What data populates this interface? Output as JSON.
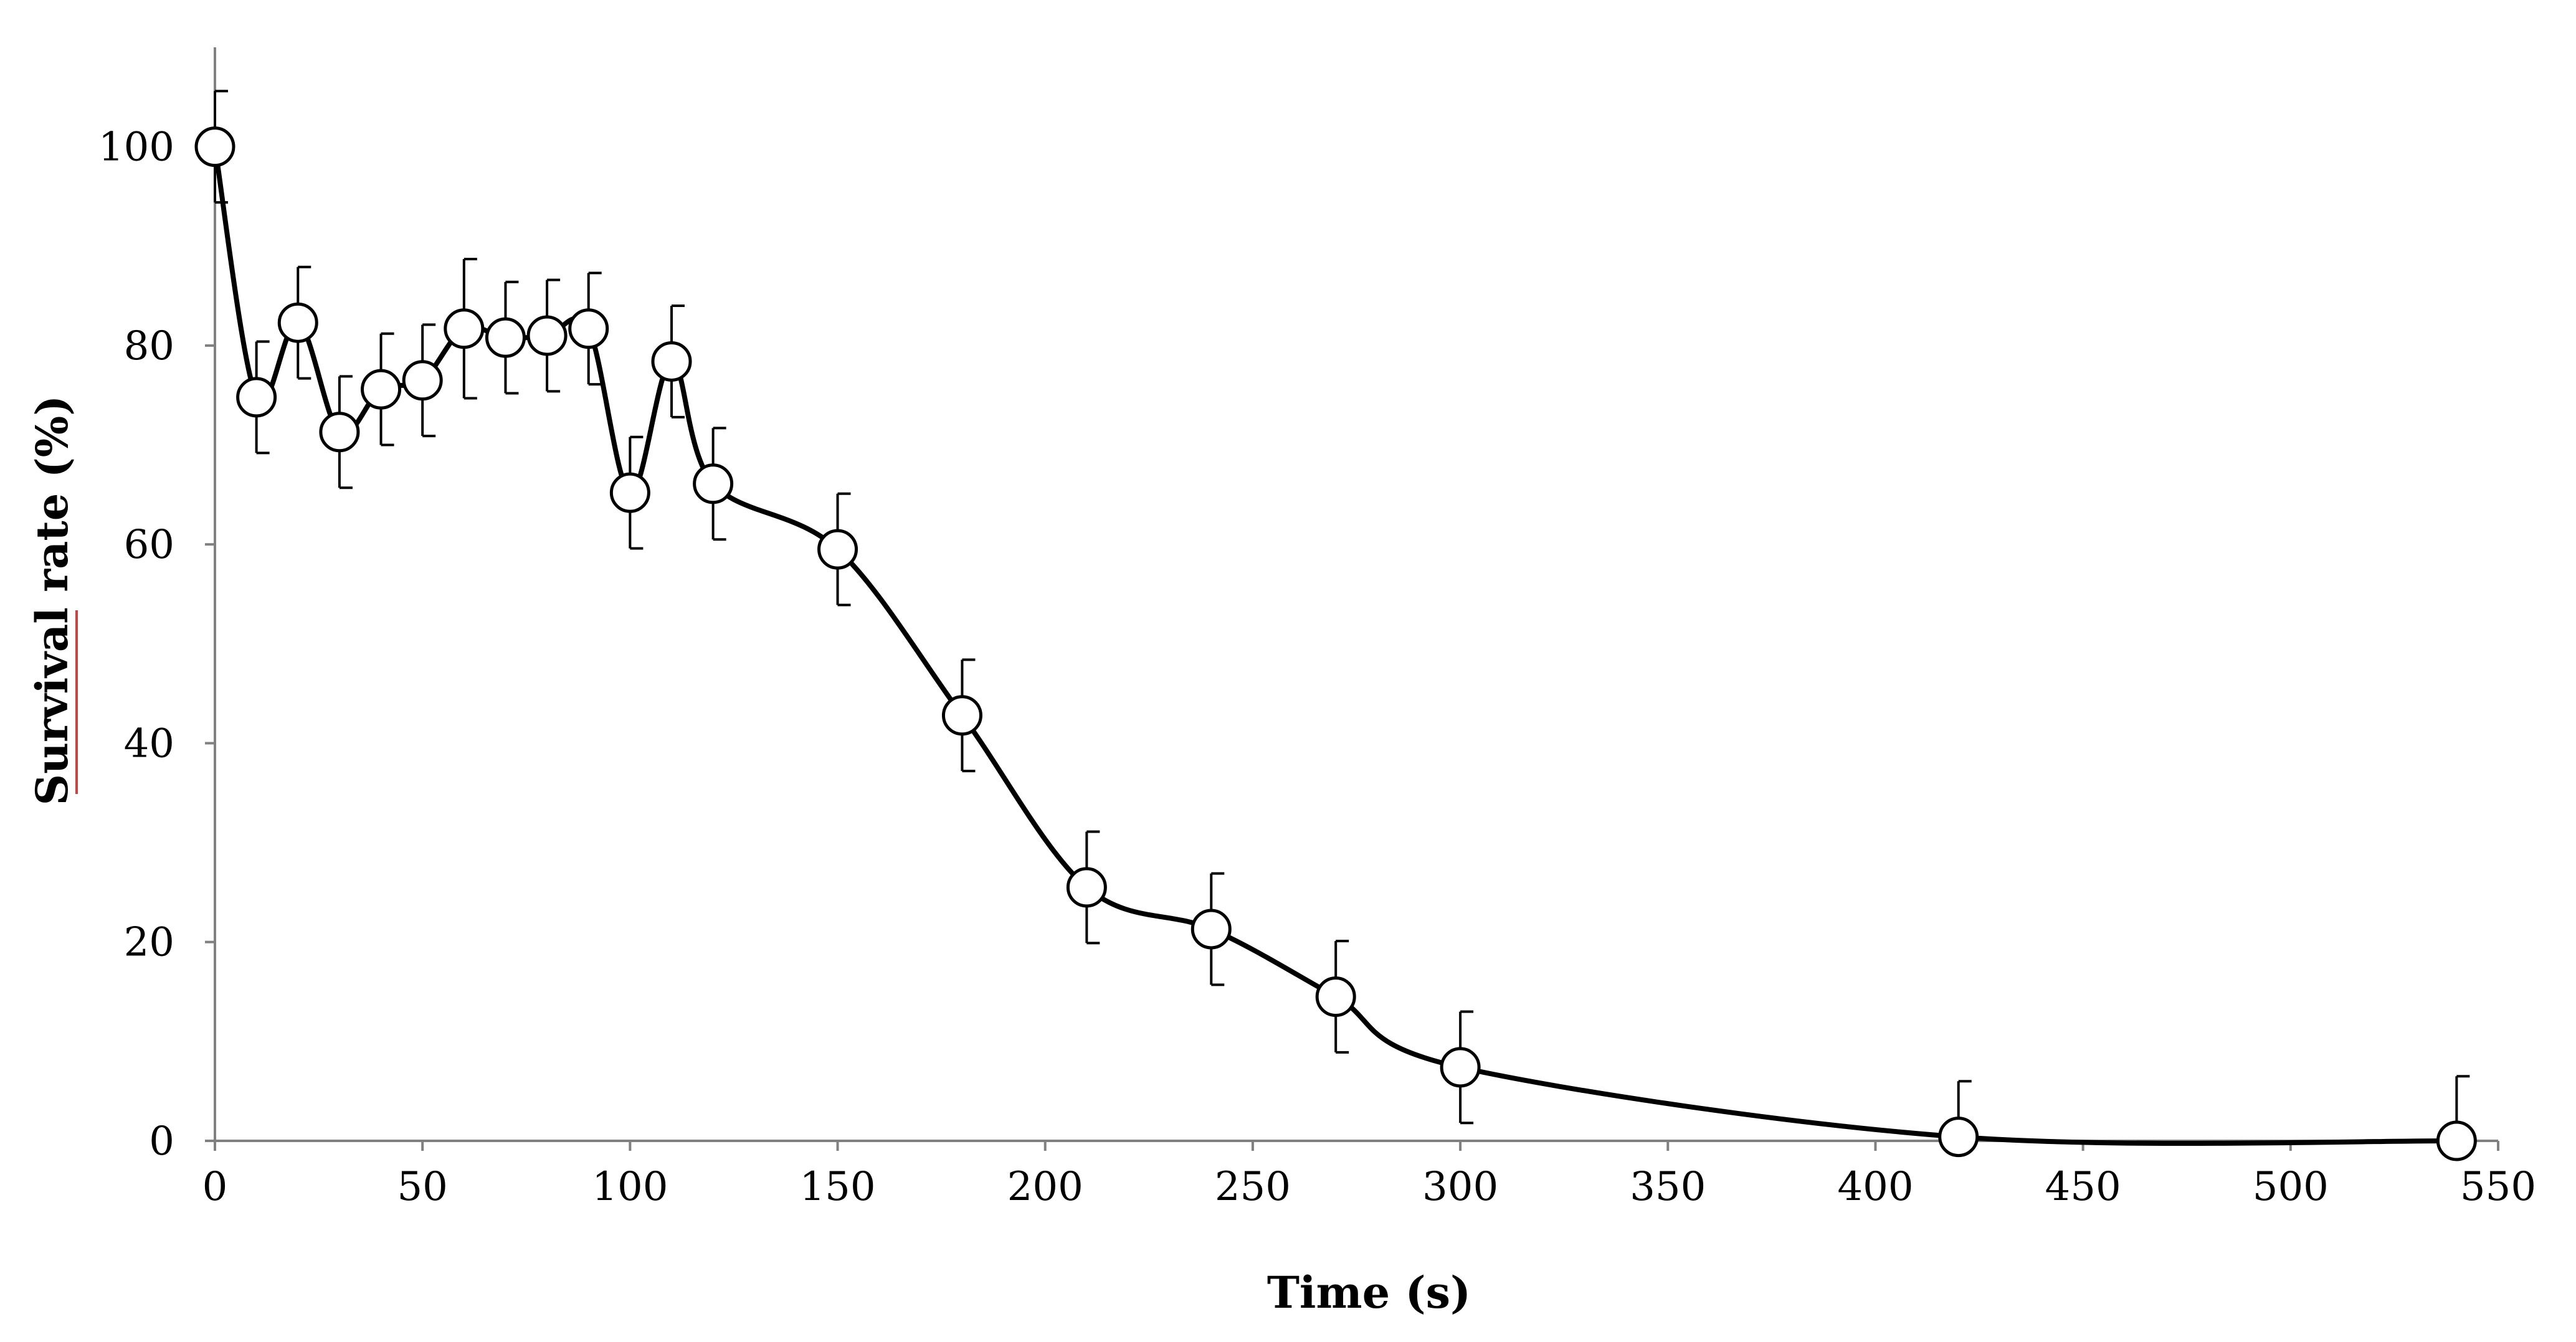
{
  "chart_data": {
    "type": "line",
    "title": "",
    "xlabel": "Time (s)",
    "ylabel": "Survival rate (%)",
    "xlim": [
      0,
      550
    ],
    "ylim": [
      0,
      110
    ],
    "xticks": [
      0,
      50,
      100,
      150,
      200,
      250,
      300,
      350,
      400,
      450,
      500,
      550
    ],
    "yticks": [
      0,
      20,
      40,
      60,
      80,
      100
    ],
    "grid": false,
    "legend": "none",
    "line_style": "smooth",
    "colors": {
      "line": "#000000",
      "marker_fill": "#ffffff",
      "marker_stroke": "#000000",
      "axis": "#808080",
      "ylabel_underline": "#d04040"
    },
    "series": [
      {
        "name": "Survival rate",
        "x": [
          0,
          10,
          20,
          30,
          40,
          50,
          60,
          70,
          80,
          90,
          100,
          110,
          120,
          150,
          180,
          210,
          240,
          270,
          300,
          420,
          540
        ],
        "y": [
          100,
          74.8,
          82.3,
          71.3,
          75.6,
          76.5,
          81.7,
          80.8,
          81.0,
          81.7,
          65.2,
          78.4,
          66.1,
          59.5,
          42.8,
          25.5,
          21.3,
          14.5,
          7.4,
          0.4,
          0.0
        ],
        "error": [
          5.6,
          5.6,
          5.6,
          5.6,
          5.6,
          5.6,
          7.0,
          5.6,
          5.6,
          5.6,
          5.6,
          5.6,
          5.6,
          5.6,
          5.6,
          5.6,
          5.6,
          5.6,
          5.6,
          5.6,
          6.5
        ]
      }
    ]
  }
}
